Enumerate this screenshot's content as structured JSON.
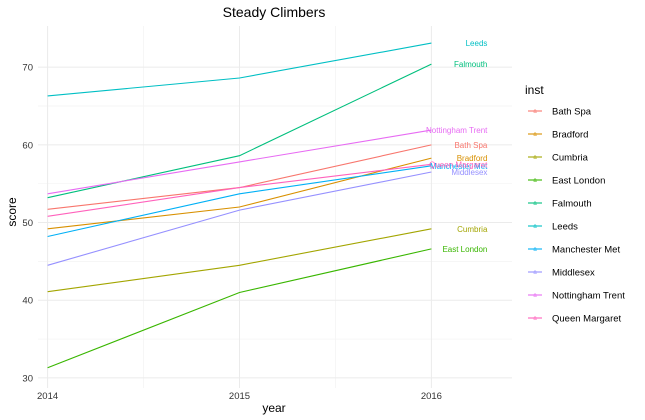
{
  "chart_data": {
    "type": "line",
    "title": "Steady Climbers",
    "xlabel": "year",
    "ylabel": "score",
    "x": [
      2014,
      2015,
      2016
    ],
    "x_ticks": [
      "2014",
      "2015",
      "2016"
    ],
    "xlim": [
      2014,
      2016.4
    ],
    "ylim": [
      30,
      75
    ],
    "y_ticks": [
      30,
      40,
      50,
      60,
      70
    ],
    "grid": true,
    "legend_title": "inst",
    "legend_position": "right",
    "series": [
      {
        "name": "Bath Spa",
        "color": "#F8766D",
        "values": [
          51.7,
          54.5,
          60.0
        ]
      },
      {
        "name": "Bradford",
        "color": "#D89000",
        "values": [
          49.2,
          52.0,
          58.3
        ]
      },
      {
        "name": "Cumbria",
        "color": "#A3A500",
        "values": [
          41.1,
          44.5,
          49.2
        ]
      },
      {
        "name": "East London",
        "color": "#39B600",
        "values": [
          31.3,
          41.0,
          46.6
        ]
      },
      {
        "name": "Falmouth",
        "color": "#00BF7D",
        "values": [
          53.2,
          58.6,
          70.4
        ]
      },
      {
        "name": "Leeds",
        "color": "#00BFC4",
        "values": [
          66.3,
          68.6,
          73.1
        ]
      },
      {
        "name": "Manchester Met",
        "color": "#00B0F6",
        "values": [
          48.2,
          53.7,
          57.3
        ]
      },
      {
        "name": "Middlesex",
        "color": "#9590FF",
        "values": [
          44.5,
          51.6,
          56.5
        ]
      },
      {
        "name": "Nottingham Trent",
        "color": "#E76BF3",
        "values": [
          53.7,
          57.8,
          61.9
        ]
      },
      {
        "name": "Queen Margaret",
        "color": "#FF62BC",
        "values": [
          50.8,
          54.5,
          57.5
        ]
      }
    ]
  }
}
